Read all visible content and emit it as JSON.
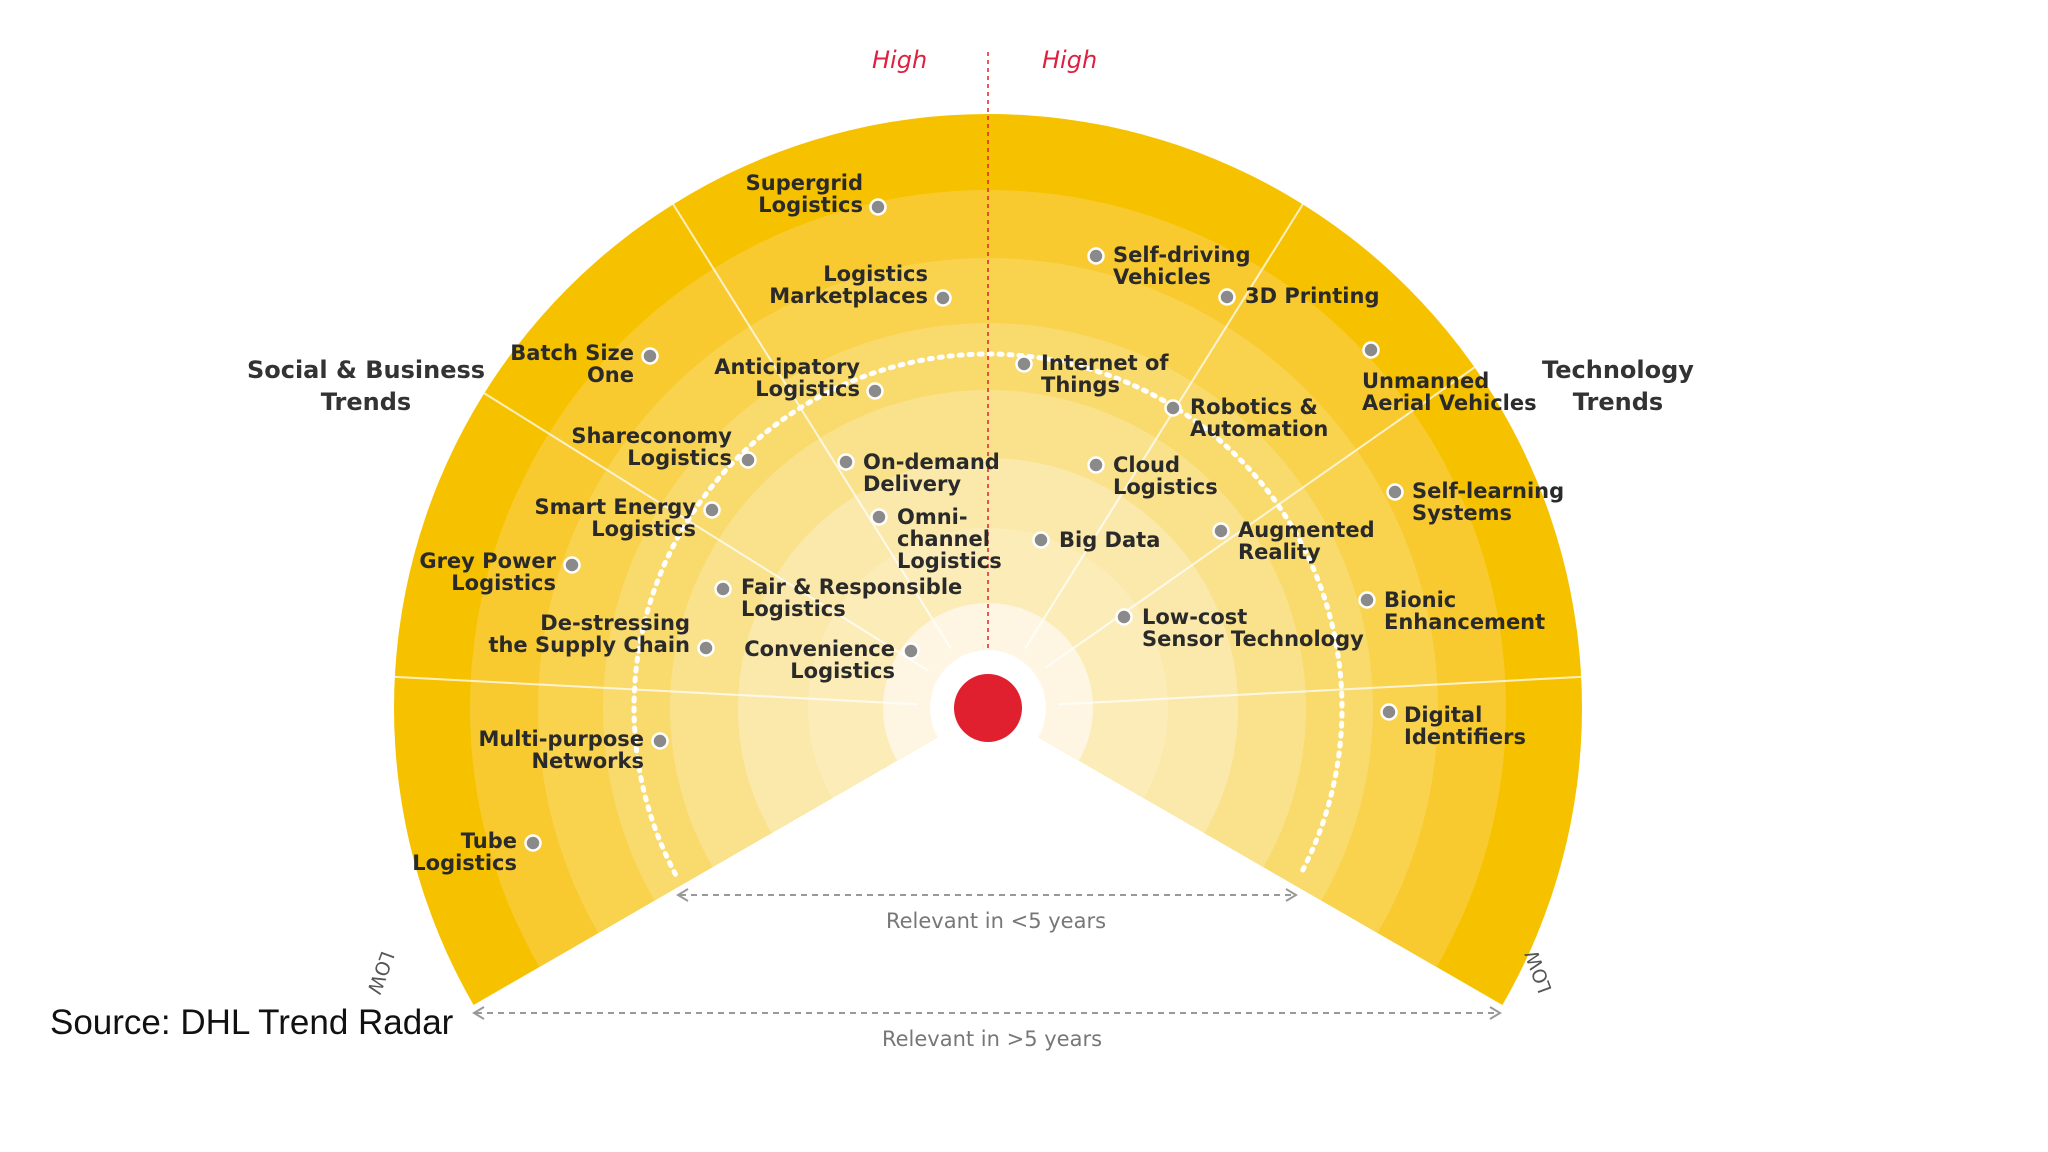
{
  "diagram": {
    "high_left": "High",
    "high_right": "High",
    "low_left": "LOW",
    "low_right": "LOW",
    "left_group": [
      "Social & Business",
      "Trends"
    ],
    "right_group": [
      "Technology",
      "Trends"
    ],
    "relevance_inner": "Relevant in <5 years",
    "relevance_outer": "Relevant in >5 years",
    "source": "Source: DHL Trend Radar",
    "colors": {
      "outer_band": "#f6c200",
      "ring_mid": "#f9d35a",
      "ring_inner": "#fcecb8",
      "center_dot": "#e0202f",
      "trend_marker": "#8a8a8a"
    }
  },
  "trends": [
    {
      "label": [
        "Supergrid",
        "Logistics"
      ],
      "side": "social"
    },
    {
      "label": [
        "Logistics",
        "Marketplaces"
      ],
      "side": "social"
    },
    {
      "label": [
        "Batch Size",
        "One"
      ],
      "side": "social"
    },
    {
      "label": [
        "Anticipatory",
        "Logistics"
      ],
      "side": "social"
    },
    {
      "label": [
        "Shareconomy",
        "Logistics"
      ],
      "side": "social"
    },
    {
      "label": [
        "On-demand",
        "Delivery"
      ],
      "side": "social"
    },
    {
      "label": [
        "Smart Energy",
        "Logistics"
      ],
      "side": "social"
    },
    {
      "label": [
        "Omni-",
        "channel",
        "Logistics"
      ],
      "side": "social"
    },
    {
      "label": [
        "Grey Power",
        "Logistics"
      ],
      "side": "social"
    },
    {
      "label": [
        "Fair & Responsible",
        "Logistics"
      ],
      "side": "social"
    },
    {
      "label": [
        "De-stressing",
        "the Supply Chain"
      ],
      "side": "social"
    },
    {
      "label": [
        "Convenience",
        "Logistics"
      ],
      "side": "social"
    },
    {
      "label": [
        "Multi-purpose",
        "Networks"
      ],
      "side": "social"
    },
    {
      "label": [
        "Tube",
        "Logistics"
      ],
      "side": "social"
    },
    {
      "label": [
        "Self-driving",
        "Vehicles"
      ],
      "side": "technology"
    },
    {
      "label": [
        "3D Printing"
      ],
      "side": "technology"
    },
    {
      "label": [
        "Internet of",
        "Things"
      ],
      "side": "technology"
    },
    {
      "label": [
        "Unmanned",
        "Aerial Vehicles"
      ],
      "side": "technology"
    },
    {
      "label": [
        "Robotics &",
        "Automation"
      ],
      "side": "technology"
    },
    {
      "label": [
        "Cloud",
        "Logistics"
      ],
      "side": "technology"
    },
    {
      "label": [
        "Self-learning",
        "Systems"
      ],
      "side": "technology"
    },
    {
      "label": [
        "Big Data"
      ],
      "side": "technology"
    },
    {
      "label": [
        "Augmented",
        "Reality"
      ],
      "side": "technology"
    },
    {
      "label": [
        "Bionic",
        "Enhancement"
      ],
      "side": "technology"
    },
    {
      "label": [
        "Low-cost",
        "Sensor Technology"
      ],
      "side": "technology"
    },
    {
      "label": [
        "Digital",
        "Identifiers"
      ],
      "side": "technology"
    }
  ]
}
